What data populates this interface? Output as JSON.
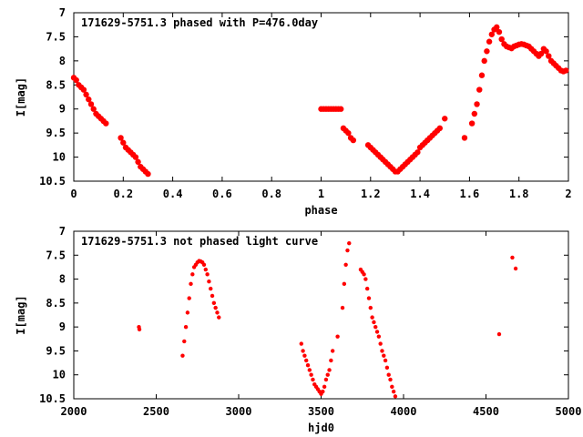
{
  "chart_data": [
    {
      "type": "scatter",
      "title": "171629-5751.3 phased with P=476.0day",
      "xlabel": "phase",
      "ylabel": "I[mag]",
      "xlim": [
        0,
        2
      ],
      "ylim": [
        7,
        10.5
      ],
      "y_inverted": true,
      "grid": false,
      "xticks": [
        "0",
        "0.2",
        "0.4",
        "0.6",
        "0.8",
        "1",
        "1.2",
        "1.4",
        "1.6",
        "1.8",
        "2"
      ],
      "yticks": [
        "7",
        "7.5",
        "8",
        "8.5",
        "9",
        "9.5",
        "10",
        "10.5"
      ],
      "color": "#ff0000",
      "series": [
        {
          "x": [
            0.0,
            0.01,
            0.02,
            0.03,
            0.04,
            0.05,
            0.06,
            0.07,
            0.08,
            0.09,
            0.1,
            0.11,
            0.12,
            0.13,
            0.19,
            0.2,
            0.21,
            0.22,
            0.23,
            0.24,
            0.25,
            0.26,
            0.27,
            0.28,
            0.29,
            0.3,
            1.0,
            1.01,
            1.02,
            1.03,
            1.04,
            1.05,
            1.06,
            1.07,
            1.08,
            1.09,
            1.1,
            1.11,
            1.12,
            1.13,
            1.19,
            1.2,
            1.21,
            1.22,
            1.23,
            1.24,
            1.25,
            1.26,
            1.27,
            1.28,
            1.29,
            1.3,
            1.31,
            1.32,
            1.33,
            1.34,
            1.35,
            1.36,
            1.37,
            1.38,
            1.39,
            1.4,
            1.41,
            1.42,
            1.43,
            1.44,
            1.45,
            1.46,
            1.47,
            1.48,
            1.5,
            1.58,
            1.61,
            1.62,
            1.63,
            1.64,
            1.65,
            1.66,
            1.67,
            1.68,
            1.69,
            1.7,
            1.71,
            1.72,
            1.73,
            1.74,
            1.75,
            1.76,
            1.77,
            1.78,
            1.79,
            1.8,
            1.81,
            1.82,
            1.83,
            1.84,
            1.85,
            1.86,
            1.87,
            1.88,
            1.89,
            1.9,
            1.91,
            1.92,
            1.93,
            1.94,
            1.95,
            1.96,
            1.97,
            1.98,
            1.99
          ],
          "y": [
            8.35,
            8.4,
            8.5,
            8.55,
            8.6,
            8.7,
            8.8,
            8.9,
            9.0,
            9.1,
            9.15,
            9.2,
            9.25,
            9.3,
            9.6,
            9.7,
            9.8,
            9.85,
            9.9,
            9.95,
            10.0,
            10.1,
            10.2,
            10.25,
            10.3,
            10.35,
            9.0,
            9.0,
            9.0,
            9.0,
            9.0,
            9.0,
            9.0,
            9.0,
            9.0,
            9.4,
            9.45,
            9.5,
            9.6,
            9.65,
            9.75,
            9.8,
            9.85,
            9.9,
            9.95,
            10.0,
            10.05,
            10.1,
            10.15,
            10.2,
            10.25,
            10.3,
            10.3,
            10.25,
            10.2,
            10.15,
            10.1,
            10.05,
            10.0,
            9.95,
            9.9,
            9.8,
            9.75,
            9.7,
            9.65,
            9.6,
            9.55,
            9.5,
            9.45,
            9.4,
            9.2,
            9.6,
            9.3,
            9.1,
            8.9,
            8.6,
            8.3,
            8.0,
            7.8,
            7.6,
            7.45,
            7.35,
            7.3,
            7.4,
            7.55,
            7.65,
            7.7,
            7.72,
            7.74,
            7.7,
            7.68,
            7.66,
            7.65,
            7.66,
            7.68,
            7.7,
            7.75,
            7.8,
            7.85,
            7.9,
            7.85,
            7.75,
            7.8,
            7.9,
            8.0,
            8.05,
            8.1,
            8.15,
            8.2,
            8.22,
            8.2
          ]
        }
      ]
    },
    {
      "type": "scatter",
      "title": "171629-5751.3 not phased light curve",
      "xlabel": "hjd0",
      "ylabel": "I[mag]",
      "xlim": [
        2000,
        5000
      ],
      "ylim": [
        7,
        10.5
      ],
      "y_inverted": true,
      "grid": false,
      "xticks": [
        "2000",
        "2500",
        "3000",
        "3500",
        "4000",
        "4500",
        "5000"
      ],
      "yticks": [
        "7",
        "7.5",
        "8",
        "8.5",
        "9",
        "9.5",
        "10",
        "10.5"
      ],
      "color": "#ff0000",
      "series": [
        {
          "x": [
            2395,
            2398,
            2660,
            2670,
            2680,
            2690,
            2700,
            2710,
            2720,
            2730,
            2740,
            2750,
            2760,
            2770,
            2780,
            2790,
            2800,
            2810,
            2820,
            2830,
            2840,
            2850,
            2860,
            2870,
            2880,
            3380,
            3390,
            3400,
            3410,
            3420,
            3430,
            3440,
            3450,
            3460,
            3470,
            3480,
            3490,
            3500,
            3510,
            3520,
            3530,
            3540,
            3550,
            3560,
            3570,
            3600,
            3630,
            3640,
            3650,
            3660,
            3670,
            3740,
            3750,
            3760,
            3770,
            3780,
            3790,
            3800,
            3810,
            3820,
            3830,
            3840,
            3850,
            3860,
            3870,
            3880,
            3890,
            3900,
            3910,
            3920,
            3930,
            3940,
            3950,
            4580,
            4660,
            4680
          ],
          "y": [
            9.0,
            9.05,
            9.6,
            9.3,
            9.0,
            8.7,
            8.4,
            8.1,
            7.9,
            7.75,
            7.7,
            7.65,
            7.62,
            7.63,
            7.65,
            7.7,
            7.8,
            7.9,
            8.05,
            8.2,
            8.35,
            8.5,
            8.6,
            8.7,
            8.8,
            9.35,
            9.5,
            9.6,
            9.7,
            9.8,
            9.9,
            10.0,
            10.1,
            10.2,
            10.25,
            10.3,
            10.35,
            10.4,
            10.35,
            10.25,
            10.1,
            10.0,
            9.9,
            9.7,
            9.5,
            9.2,
            8.6,
            8.1,
            7.7,
            7.4,
            7.25,
            7.8,
            7.85,
            7.9,
            8.0,
            8.2,
            8.4,
            8.6,
            8.8,
            8.9,
            9.0,
            9.1,
            9.2,
            9.35,
            9.5,
            9.6,
            9.7,
            9.85,
            10.0,
            10.1,
            10.25,
            10.35,
            10.45,
            9.15,
            7.55,
            7.78
          ]
        }
      ]
    }
  ]
}
